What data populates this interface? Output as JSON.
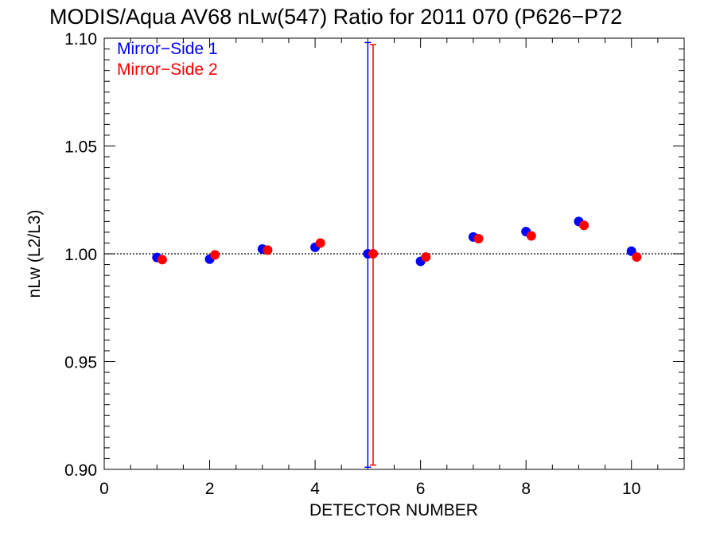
{
  "chart_data": {
    "type": "scatter",
    "title": "MODIS/Aqua AV68 nLw(547) Ratio for 2011 070 (P626−P72",
    "xlabel": "DETECTOR NUMBER",
    "ylabel": "nLw (L2/L3)",
    "xlim": [
      0,
      11
    ],
    "ylim": [
      0.9,
      1.1
    ],
    "x_ticks": [
      0,
      2,
      4,
      6,
      8,
      10
    ],
    "x_tick_labels": [
      "0",
      "2",
      "4",
      "6",
      "8",
      "10"
    ],
    "y_ticks": [
      0.9,
      0.95,
      1.0,
      1.05,
      1.1
    ],
    "y_tick_labels": [
      "0.90",
      "0.95",
      "1.00",
      "1.05",
      "1.10"
    ],
    "reference_line": 1.0,
    "grid": false,
    "legend_position": "top-left",
    "series": [
      {
        "name": "Mirror−Side 1",
        "color": "#0000ff",
        "x": [
          1,
          2,
          3,
          4,
          5,
          6,
          7,
          8,
          9,
          10
        ],
        "y": [
          0.9983,
          0.9975,
          1.0022,
          1.003,
          1.0,
          0.9965,
          1.0078,
          1.0103,
          1.015,
          1.0012
        ],
        "error_bar": {
          "x": 5,
          "low": 0.901,
          "high": 1.098
        }
      },
      {
        "name": "Mirror−Side 2",
        "color": "#ff0000",
        "x": [
          1.1,
          2.1,
          3.1,
          4.1,
          5.1,
          6.1,
          7.1,
          8.1,
          9.1,
          10.1
        ],
        "y": [
          0.9973,
          0.9995,
          1.0017,
          1.005,
          1.0,
          0.9985,
          1.007,
          1.0083,
          1.0132,
          0.9985
        ],
        "error_bar": {
          "x": 5.1,
          "low": 0.902,
          "high": 1.097
        }
      }
    ]
  }
}
